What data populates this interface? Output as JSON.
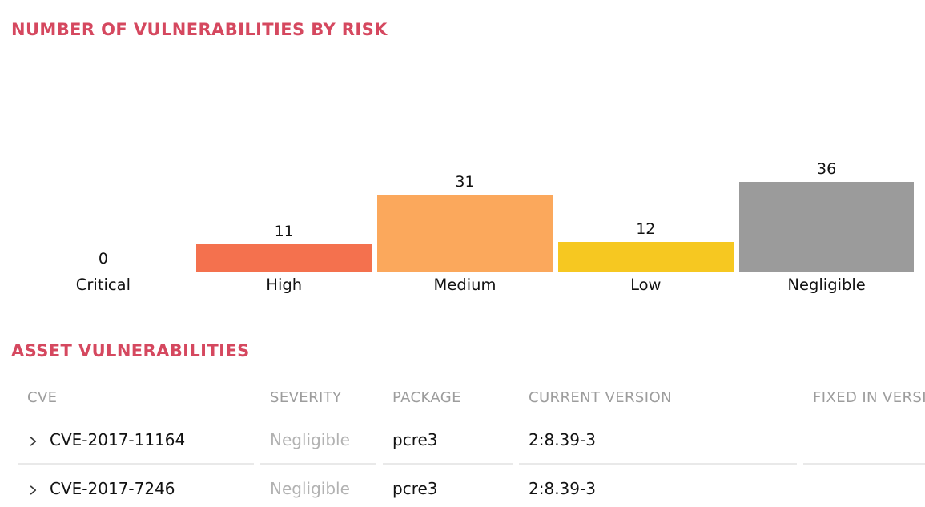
{
  "chart_section": {
    "title": "NUMBER OF VULNERABILITIES BY RISK"
  },
  "chart_data": {
    "type": "bar",
    "title": "NUMBER OF VULNERABILITIES BY RISK",
    "categories": [
      "Critical",
      "High",
      "Medium",
      "Low",
      "Negligible"
    ],
    "values": [
      0,
      11,
      31,
      12,
      36
    ],
    "bar_colors": [
      null,
      "#f4714e",
      "#fba85c",
      "#f6c821",
      "#9b9b9b"
    ],
    "value_labels_shown": true,
    "xlabel": "",
    "ylabel": "",
    "grid": false,
    "legend": "none",
    "axes_hidden": true
  },
  "asset_section": {
    "title": "ASSET VULNERABILITIES",
    "table": {
      "columns": [
        {
          "key": "cve",
          "label": "CVE"
        },
        {
          "key": "severity",
          "label": "SEVERITY"
        },
        {
          "key": "package",
          "label": "PACKAGE"
        },
        {
          "key": "current_version",
          "label": "CURRENT VERSION"
        },
        {
          "key": "fixed_in_version",
          "label": "FIXED IN VERSION"
        }
      ],
      "rows": [
        {
          "cve": "CVE-2017-11164",
          "severity": "Negligible",
          "package": "pcre3",
          "current_version": "2:8.39-3",
          "fixed_in_version": "",
          "expandable": true
        },
        {
          "cve": "CVE-2017-7246",
          "severity": "Negligible",
          "package": "pcre3",
          "current_version": "2:8.39-3",
          "fixed_in_version": "",
          "expandable": true
        }
      ]
    }
  },
  "icons": {
    "row_expander": "chevron-right"
  },
  "colors": {
    "heading_text": "#d5485f",
    "table_header_text": "#9d9d9d",
    "severity_negligible_text": "#b2b2b2",
    "row_border": "#e9e9e9",
    "bar_high": "#f4714e",
    "bar_medium": "#fba85c",
    "bar_low": "#f6c821",
    "bar_negligible": "#9b9b9b"
  }
}
